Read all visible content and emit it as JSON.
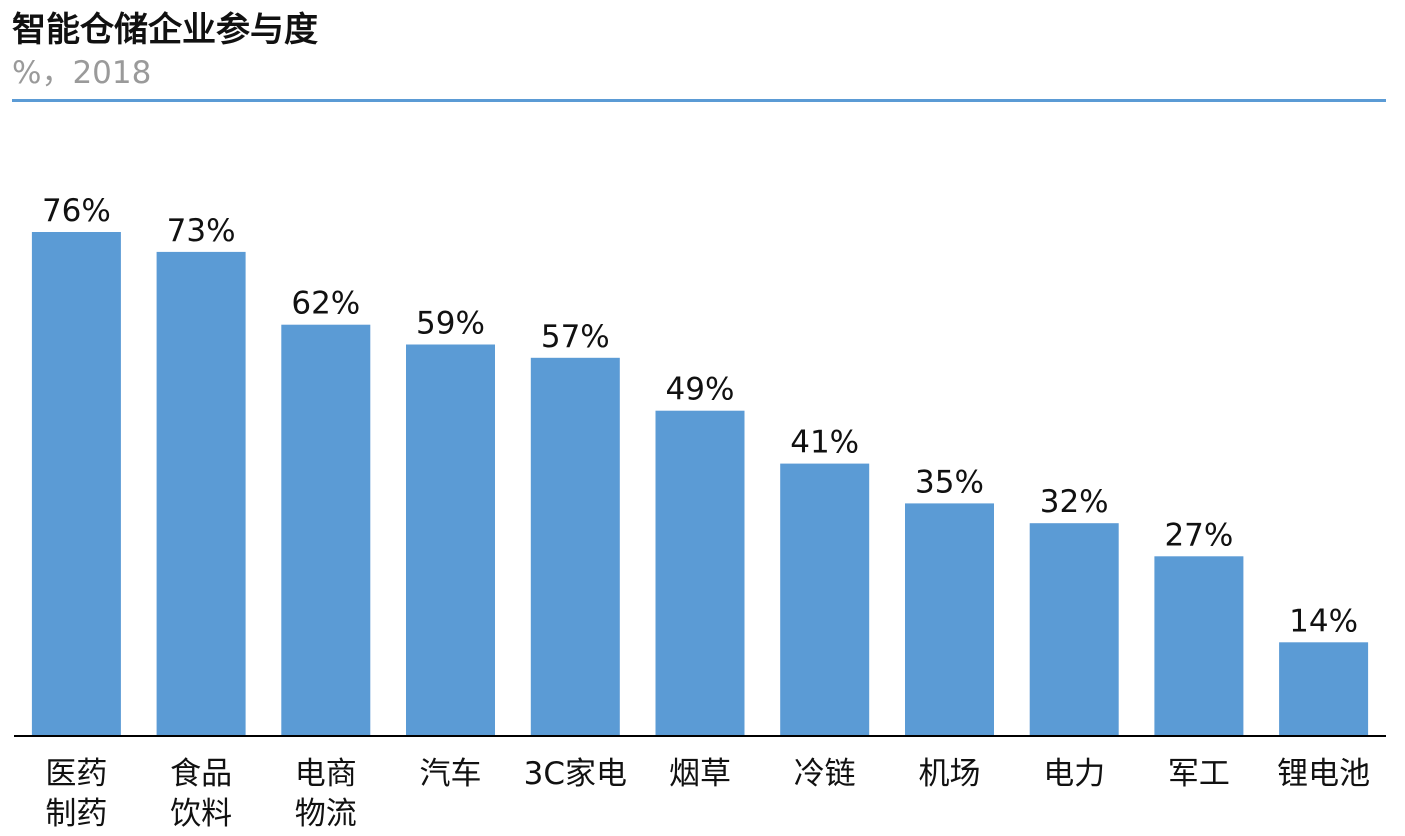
{
  "title": "智能仓储企业参与度",
  "subtitle": "%，2018",
  "colors": {
    "bar": "#5b9bd5",
    "rule": "#5b9bd5",
    "axis": "#000000",
    "label": "#111111",
    "subtitle": "#9a9a9a"
  },
  "chart_data": {
    "type": "bar",
    "categories": [
      [
        "医药",
        "制药"
      ],
      [
        "食品",
        "饮料"
      ],
      [
        "电商",
        "物流"
      ],
      [
        "汽车"
      ],
      [
        "3C家电"
      ],
      [
        "烟草"
      ],
      [
        "冷链"
      ],
      [
        "机场"
      ],
      [
        "电力"
      ],
      [
        "军工"
      ],
      [
        "锂电池"
      ]
    ],
    "values": [
      76,
      73,
      62,
      59,
      57,
      49,
      41,
      35,
      32,
      27,
      14
    ],
    "value_labels": [
      "76%",
      "73%",
      "62%",
      "59%",
      "57%",
      "49%",
      "41%",
      "35%",
      "32%",
      "27%",
      "14%"
    ],
    "ylim": [
      0,
      76
    ],
    "grid": false,
    "legend": "none"
  }
}
